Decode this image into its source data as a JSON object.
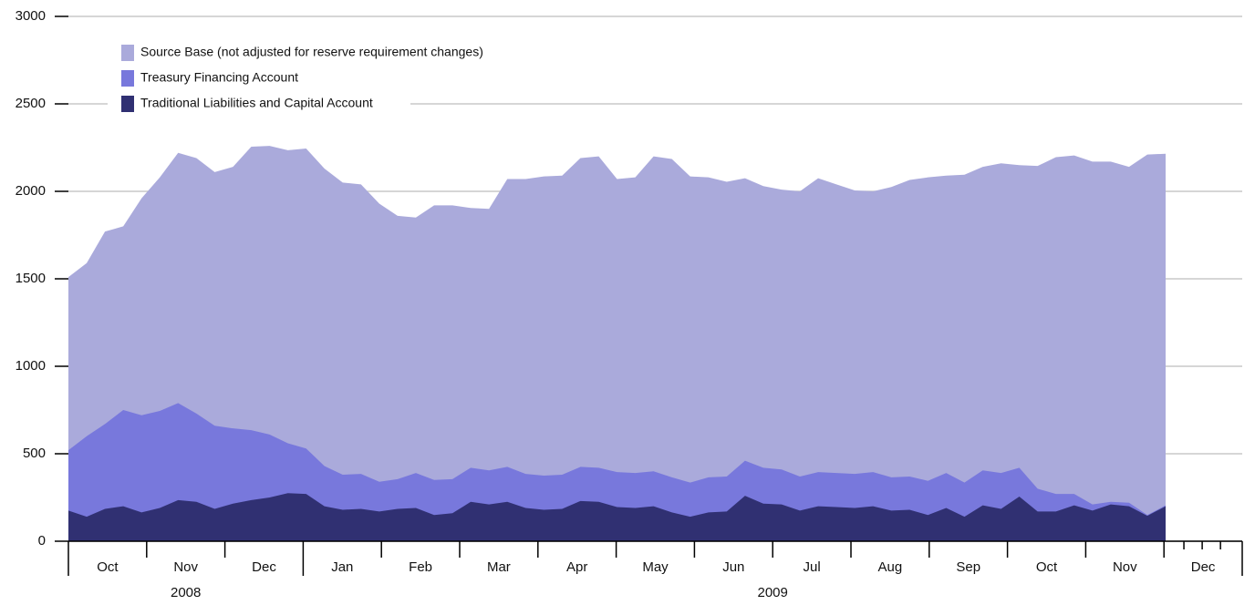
{
  "chart_data": {
    "type": "area",
    "ylim": [
      0,
      3000
    ],
    "yticks": [
      0,
      500,
      1000,
      1500,
      2000,
      2500,
      3000
    ],
    "grid": true,
    "legend": "top-left",
    "categories": [
      null,
      null,
      null,
      null,
      null,
      null,
      null,
      null,
      null,
      null,
      null,
      null,
      null,
      null,
      null,
      null,
      null,
      null,
      null,
      null,
      null,
      null,
      null,
      null,
      null,
      null,
      null,
      null,
      null,
      null,
      null,
      null,
      null,
      null,
      null,
      null,
      null,
      null,
      null,
      null,
      null,
      null,
      null,
      null,
      null,
      null,
      null,
      null,
      null,
      null,
      null,
      null,
      null,
      null,
      null,
      null,
      null,
      null,
      null,
      null,
      null
    ],
    "months": [
      "Oct",
      "Nov",
      "Dec",
      "Jan",
      "Feb",
      "Mar",
      "Apr",
      "May",
      "Jun",
      "Jul",
      "Aug",
      "Sep",
      "Oct",
      "Nov",
      "Dec"
    ],
    "years": [
      "2008",
      "2009"
    ],
    "series": [
      {
        "name": "Source Base (not adjusted for reserve requirement changes)",
        "color": "#aaaadb",
        "values": [
          1510,
          1590,
          1770,
          1800,
          1960,
          2080,
          2220,
          2190,
          2110,
          2140,
          2255,
          2260,
          2235,
          2245,
          2130,
          2050,
          2040,
          1930,
          1860,
          1850,
          1920,
          1920,
          1905,
          1900,
          2070,
          2070,
          2085,
          2090,
          2190,
          2200,
          2070,
          2080,
          2200,
          2185,
          2085,
          2080,
          2055,
          2075,
          2030,
          2010,
          2000,
          2075,
          2040,
          2005,
          2000,
          2025,
          2065,
          2080,
          2090,
          2095,
          2140,
          2160,
          2150,
          2145,
          2195,
          2205,
          2170,
          2170,
          2140,
          2210,
          2215
        ]
      },
      {
        "name": "Treasury Financing Account",
        "color": "#7878dc",
        "values": [
          520,
          600,
          670,
          750,
          720,
          745,
          790,
          730,
          660,
          645,
          635,
          610,
          560,
          530,
          430,
          380,
          385,
          340,
          355,
          390,
          350,
          355,
          420,
          405,
          425,
          385,
          375,
          380,
          425,
          420,
          395,
          390,
          400,
          365,
          335,
          365,
          370,
          460,
          420,
          410,
          370,
          395,
          390,
          385,
          395,
          365,
          370,
          345,
          390,
          335,
          405,
          390,
          420,
          300,
          270,
          270,
          210,
          225,
          220,
          150,
          205
        ]
      },
      {
        "name": "Traditional Liabilities and Capital Account",
        "color": "#303072",
        "values": [
          175,
          140,
          185,
          200,
          165,
          190,
          235,
          225,
          185,
          215,
          235,
          250,
          275,
          270,
          200,
          180,
          185,
          170,
          185,
          190,
          150,
          160,
          225,
          210,
          225,
          190,
          180,
          185,
          230,
          225,
          195,
          190,
          200,
          165,
          140,
          165,
          170,
          260,
          215,
          210,
          175,
          200,
          195,
          190,
          200,
          175,
          180,
          150,
          190,
          140,
          205,
          185,
          255,
          170,
          170,
          205,
          175,
          210,
          200,
          145,
          200
        ]
      }
    ]
  }
}
